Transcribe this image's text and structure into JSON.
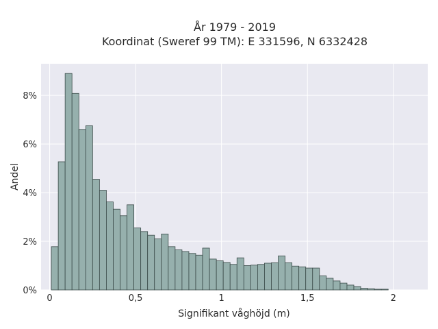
{
  "chart_data": {
    "type": "bar",
    "title": "År 1979 - 2019",
    "subtitle": "Koordinat (Sweref 99 TM): E 331596, N 6332428",
    "xlabel": "Signifikant våghöjd (m)",
    "ylabel": "Andel",
    "xlim": [
      -0.05,
      2.2
    ],
    "ylim": [
      0,
      0.093
    ],
    "x_ticks": [
      0,
      0.5,
      1,
      1.5,
      2
    ],
    "x_tick_labels": [
      "0",
      "0,5",
      "1",
      "1,5",
      "2"
    ],
    "y_ticks": [
      0,
      0.02,
      0.04,
      0.06,
      0.08
    ],
    "y_tick_labels": [
      "0%",
      "2%",
      "4%",
      "6%",
      "8%"
    ],
    "grid": true,
    "bin_width": 0.04,
    "bin_start": 0.01,
    "values": [
      0.0178,
      0.0527,
      0.089,
      0.0808,
      0.066,
      0.0675,
      0.0455,
      0.041,
      0.0362,
      0.0332,
      0.0305,
      0.035,
      0.0255,
      0.024,
      0.0225,
      0.021,
      0.023,
      0.0178,
      0.0165,
      0.0158,
      0.015,
      0.0143,
      0.0172,
      0.0127,
      0.012,
      0.0113,
      0.0105,
      0.0132,
      0.01,
      0.0102,
      0.0105,
      0.011,
      0.0112,
      0.014,
      0.0112,
      0.0098,
      0.0095,
      0.009,
      0.009,
      0.0058,
      0.0048,
      0.0037,
      0.0028,
      0.002,
      0.0014,
      0.0007,
      0.0005,
      0.0003,
      0.0003
    ],
    "colors": {
      "bar_fill": "#96b0ad",
      "bar_stroke": "#3a4a48",
      "plot_bg": "#e9e9f1",
      "grid": "#ffffff",
      "text": "#2a2a2a"
    }
  }
}
